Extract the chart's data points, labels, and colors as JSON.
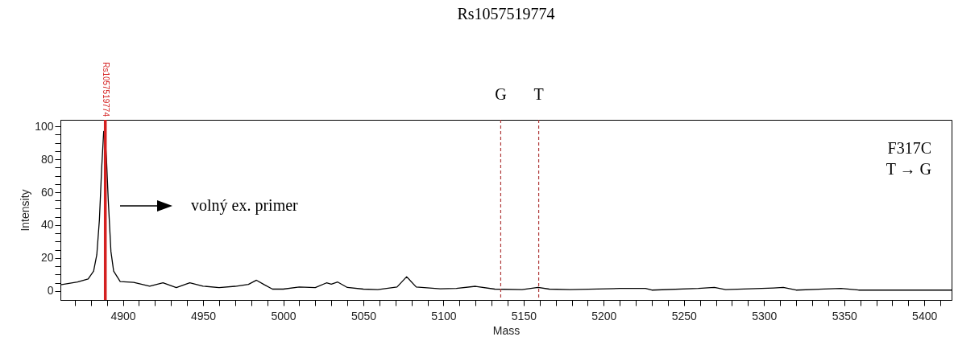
{
  "chart_data": {
    "type": "line",
    "title": "Rs1057519774",
    "xlabel": "Mass",
    "ylabel": "Intensity",
    "x": [
      4861,
      4871.7,
      4878.3,
      4881.7,
      4883.7,
      4885.3,
      4886.7,
      4888,
      4888.8,
      4889.7,
      4890.8,
      4892.5,
      4894.2,
      4898.3,
      4906.7,
      4916.7,
      4925,
      4933.3,
      4941.7,
      4950,
      4960,
      4970,
      4978.3,
      4983.3,
      4988.3,
      4993.3,
      5000,
      5010,
      5020,
      5027,
      5030,
      5034,
      5040,
      5050,
      5059,
      5071,
      5077,
      5083,
      5098,
      5108,
      5120,
      5132,
      5149,
      5159,
      5166,
      5179,
      5210,
      5226,
      5230,
      5259,
      5269,
      5276,
      5306,
      5312,
      5320,
      5348,
      5359,
      5417
    ],
    "series": [
      {
        "color": "#000000",
        "values": [
          3.7,
          5.4,
          7.3,
          12,
          22,
          43,
          74,
          97,
          94,
          81,
          56,
          24,
          12,
          5.7,
          5.2,
          2.9,
          4.9,
          2,
          4.9,
          2.9,
          2,
          2.8,
          4,
          6.5,
          3.7,
          1.1,
          1.1,
          2.4,
          2,
          4.9,
          4.1,
          5.4,
          2.1,
          1.1,
          0.8,
          2.4,
          8.6,
          2.4,
          1.3,
          1.5,
          2.8,
          1.1,
          0.8,
          2.1,
          1.1,
          0.8,
          1.5,
          1.5,
          0.5,
          1.5,
          2.1,
          0.8,
          1.8,
          2.1,
          0.5,
          1.5,
          0.5,
          0.5
        ]
      }
    ],
    "xlim": [
      4861,
      5417
    ],
    "xticks": [
      {
        "value": 4870,
        "label": null
      },
      {
        "value": 4880,
        "label": null
      },
      {
        "value": 4890,
        "label": null
      },
      4900,
      {
        "value": 4910,
        "label": null
      },
      {
        "value": 4920,
        "label": null
      },
      {
        "value": 4930,
        "label": null
      },
      {
        "value": 4940,
        "label": null
      },
      4950,
      {
        "value": 4960,
        "label": null
      },
      {
        "value": 4970,
        "label": null
      },
      {
        "value": 4980,
        "label": null
      },
      {
        "value": 4990,
        "label": null
      },
      5000,
      {
        "value": 5010,
        "label": null
      },
      {
        "value": 5020,
        "label": null
      },
      {
        "value": 5030,
        "label": null
      },
      {
        "value": 5040,
        "label": null
      },
      5050,
      {
        "value": 5060,
        "label": null
      },
      {
        "value": 5070,
        "label": null
      },
      {
        "value": 5080,
        "label": null
      },
      {
        "value": 5090,
        "label": null
      },
      5100,
      {
        "value": 5110,
        "label": null
      },
      {
        "value": 5120,
        "label": null
      },
      {
        "value": 5130,
        "label": null
      },
      {
        "value": 5140,
        "label": null
      },
      5150,
      {
        "value": 5160,
        "label": null
      },
      {
        "value": 5170,
        "label": null
      },
      {
        "value": 5180,
        "label": null
      },
      {
        "value": 5190,
        "label": null
      },
      5200,
      {
        "value": 5210,
        "label": null
      },
      {
        "value": 5220,
        "label": null
      },
      {
        "value": 5230,
        "label": null
      },
      {
        "value": 5240,
        "label": null
      },
      5250,
      {
        "value": 5260,
        "label": null
      },
      {
        "value": 5270,
        "label": null
      },
      {
        "value": 5280,
        "label": null
      },
      {
        "value": 5290,
        "label": null
      },
      5300,
      {
        "value": 5310,
        "label": null
      },
      {
        "value": 5320,
        "label": null
      },
      {
        "value": 5330,
        "label": null
      },
      {
        "value": 5340,
        "label": null
      },
      5350,
      {
        "value": 5360,
        "label": null
      },
      {
        "value": 5370,
        "label": null
      },
      {
        "value": 5380,
        "label": null
      },
      {
        "value": 5390,
        "label": null
      },
      5400,
      {
        "value": 5410,
        "label": null
      }
    ],
    "ylim": [
      -5.5,
      104
    ],
    "yticks": [
      0,
      {
        "value": 5,
        "label": null
      },
      {
        "value": 10,
        "label": null
      },
      {
        "value": 15,
        "label": null
      },
      20,
      {
        "value": 25,
        "label": null
      },
      {
        "value": 30,
        "label": null
      },
      {
        "value": 35,
        "label": null
      },
      40,
      {
        "value": 45,
        "label": null
      },
      {
        "value": 50,
        "label": null
      },
      {
        "value": 55,
        "label": null
      },
      60,
      {
        "value": 65,
        "label": null
      },
      {
        "value": 70,
        "label": null
      },
      {
        "value": 75,
        "label": null
      },
      80,
      {
        "value": 85,
        "label": null
      },
      {
        "value": 90,
        "label": null
      },
      {
        "value": 95,
        "label": null
      },
      100
    ],
    "ref_lines": [
      {
        "axis": "x",
        "value": 4889,
        "label": "Rs1057519774",
        "color": "#d42020",
        "line_style": "solid"
      },
      {
        "axis": "x",
        "value": 5135.7,
        "label": "G",
        "color": "#b03a3a",
        "line_style": "dashed"
      },
      {
        "axis": "x",
        "value": 5159.4,
        "label": "T",
        "color": "#b03a3a",
        "line_style": "dashed"
      }
    ],
    "annotations": [
      "volný ex. primer",
      "F317C",
      "T → G"
    ],
    "grid": false,
    "marker": "none",
    "line_style": "solid"
  }
}
